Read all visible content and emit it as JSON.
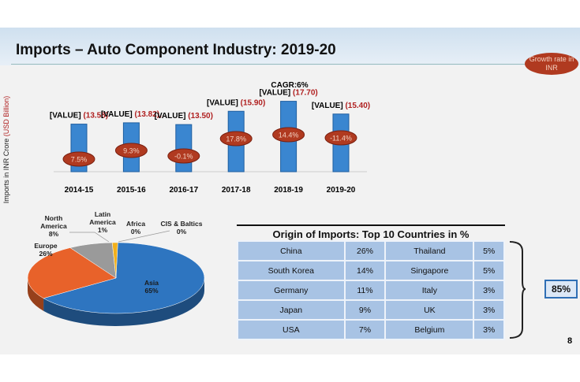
{
  "slide": {
    "title": "Imports – Auto Component Industry: 2019-20",
    "growth_label": "Growth rate in INR",
    "page_number": "8",
    "y_axis_label_prefix": "Imports in INR Crore ",
    "y_axis_label_unit": "(USD Billion)"
  },
  "chart_data": [
    {
      "type": "bar",
      "title": "CAGR:6%",
      "categories": [
        "2014-15",
        "2015-16",
        "2016-17",
        "2017-18",
        "2018-19",
        "2019-20"
      ],
      "values_usd_billion": [
        13.58,
        13.82,
        13.5,
        15.9,
        17.7,
        15.4
      ],
      "data_labels": [
        "(13.58)",
        "(13.82),",
        "(13.50)",
        "(15.90)",
        "(17.70)",
        "(15.40)"
      ],
      "value_placeholder": "[VALUE]",
      "growth_rates": [
        "7.5%",
        "9.3%",
        "-0.1%",
        "17.8%",
        "14.4%",
        "-11.4%"
      ],
      "ylim": [
        5,
        19
      ],
      "bar_color": "#3a86d0",
      "growth_color": "#b03a20",
      "grid": false
    },
    {
      "type": "pie",
      "labels": [
        "Asia",
        "Europe",
        "North America",
        "Latin America",
        "Africa",
        "CIS & Baltics"
      ],
      "values": [
        65,
        26,
        8,
        1,
        0,
        0
      ],
      "label_text": [
        [
          "Asia",
          "65%"
        ],
        [
          "Europe",
          "26%"
        ],
        [
          "North",
          "America",
          "8%"
        ],
        [
          "Latin",
          "America",
          "1%"
        ],
        [
          "Africa",
          "0%"
        ],
        [
          "CIS & Baltics",
          "0%"
        ]
      ],
      "colors": [
        "#2e75c0",
        "#e8622a",
        "#9a9a9a",
        "#f2b01c",
        "#f2d01c",
        "#6aa0d0"
      ]
    },
    {
      "type": "table",
      "title": "Origin of Imports: Top 10 Countries in %",
      "rows": [
        [
          "China",
          "26%",
          "Thailand",
          "5%"
        ],
        [
          "South Korea",
          "14%",
          "Singapore",
          "5%"
        ],
        [
          "Germany",
          "11%",
          "Italy",
          "3%"
        ],
        [
          "Japan",
          "9%",
          "UK",
          "3%"
        ],
        [
          "USA",
          "7%",
          "Belgium",
          "3%"
        ]
      ],
      "total": "85%"
    }
  ]
}
